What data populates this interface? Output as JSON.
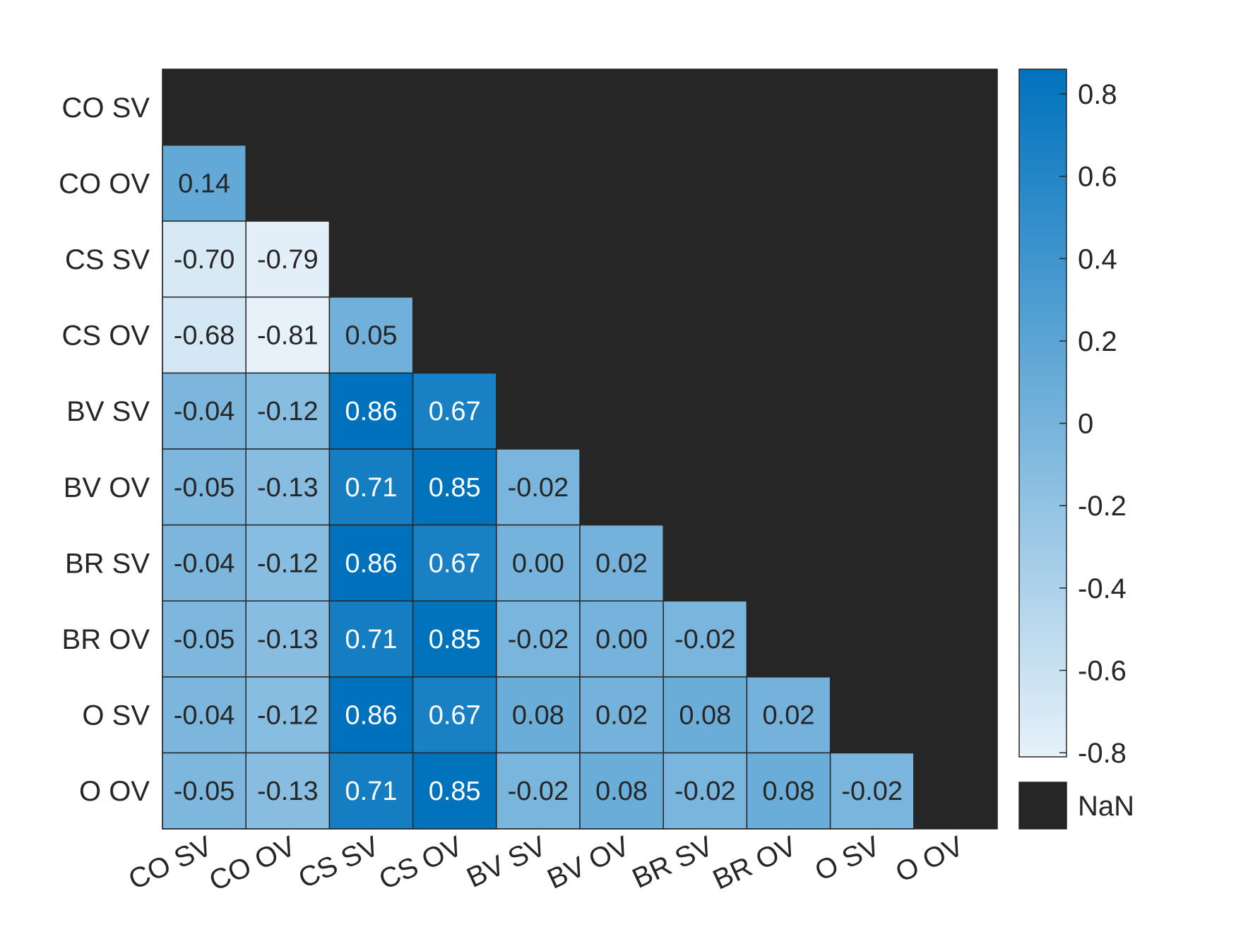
{
  "chart_data": {
    "type": "heatmap",
    "x_categories": [
      "CO SV",
      "CO OV",
      "CS SV",
      "CS OV",
      "BV SV",
      "BV OV",
      "BR SV",
      "BR OV",
      "O SV",
      "O OV"
    ],
    "y_categories": [
      "CO SV",
      "CO OV",
      "CS SV",
      "CS OV",
      "BV SV",
      "BV OV",
      "BR SV",
      "BR OV",
      "O SV",
      "O OV"
    ],
    "matrix": [
      [
        null,
        null,
        null,
        null,
        null,
        null,
        null,
        null,
        null,
        null
      ],
      [
        0.14,
        null,
        null,
        null,
        null,
        null,
        null,
        null,
        null,
        null
      ],
      [
        -0.7,
        -0.79,
        null,
        null,
        null,
        null,
        null,
        null,
        null,
        null
      ],
      [
        -0.68,
        -0.81,
        0.05,
        null,
        null,
        null,
        null,
        null,
        null,
        null
      ],
      [
        -0.04,
        -0.12,
        0.86,
        0.67,
        null,
        null,
        null,
        null,
        null,
        null
      ],
      [
        -0.05,
        -0.13,
        0.71,
        0.85,
        -0.02,
        null,
        null,
        null,
        null,
        null
      ],
      [
        -0.04,
        -0.12,
        0.86,
        0.67,
        0.0,
        0.02,
        null,
        null,
        null,
        null
      ],
      [
        -0.05,
        -0.13,
        0.71,
        0.85,
        -0.02,
        0.0,
        -0.02,
        null,
        null,
        null
      ],
      [
        -0.04,
        -0.12,
        0.86,
        0.67,
        0.08,
        0.02,
        0.08,
        0.02,
        null,
        null
      ],
      [
        -0.05,
        -0.13,
        0.71,
        0.85,
        -0.02,
        0.08,
        -0.02,
        0.08,
        -0.02,
        null
      ]
    ],
    "cell_labels": [
      [],
      [
        "0.14"
      ],
      [
        "-0.70",
        "-0.79"
      ],
      [
        "-0.68",
        "-0.81",
        "0.05"
      ],
      [
        "-0.04",
        "-0.12",
        "0.86",
        "0.67"
      ],
      [
        "-0.05",
        "-0.13",
        "0.71",
        "0.85",
        "-0.02"
      ],
      [
        "-0.04",
        "-0.12",
        "0.86",
        "0.67",
        "0.00",
        "0.02"
      ],
      [
        "-0.05",
        "-0.13",
        "0.71",
        "0.85",
        "-0.02",
        "0.00",
        "-0.02"
      ],
      [
        "-0.04",
        "-0.12",
        "0.86",
        "0.67",
        "0.08",
        "0.02",
        "0.08",
        "0.02"
      ],
      [
        "-0.05",
        "-0.13",
        "0.71",
        "0.85",
        "-0.02",
        "0.08",
        "-0.02",
        "0.08",
        "-0.02"
      ]
    ],
    "color_range": [
      -0.81,
      0.86
    ],
    "colorbar": {
      "ticks": [
        0.8,
        0.6,
        0.4,
        0.2,
        0,
        -0.2,
        -0.4,
        -0.6,
        -0.8
      ],
      "tick_labels": [
        "0.8",
        "0.6",
        "0.4",
        "0.2",
        "0",
        "-0.2",
        "-0.4",
        "-0.6",
        "-0.8"
      ],
      "nan_label": "NaN"
    },
    "colors": {
      "low": "#e6f1f9",
      "high": "#0072bd",
      "nan": "#262626",
      "grid": "#262626",
      "text_dark": "#262626",
      "text_light": "#ffffff"
    }
  }
}
